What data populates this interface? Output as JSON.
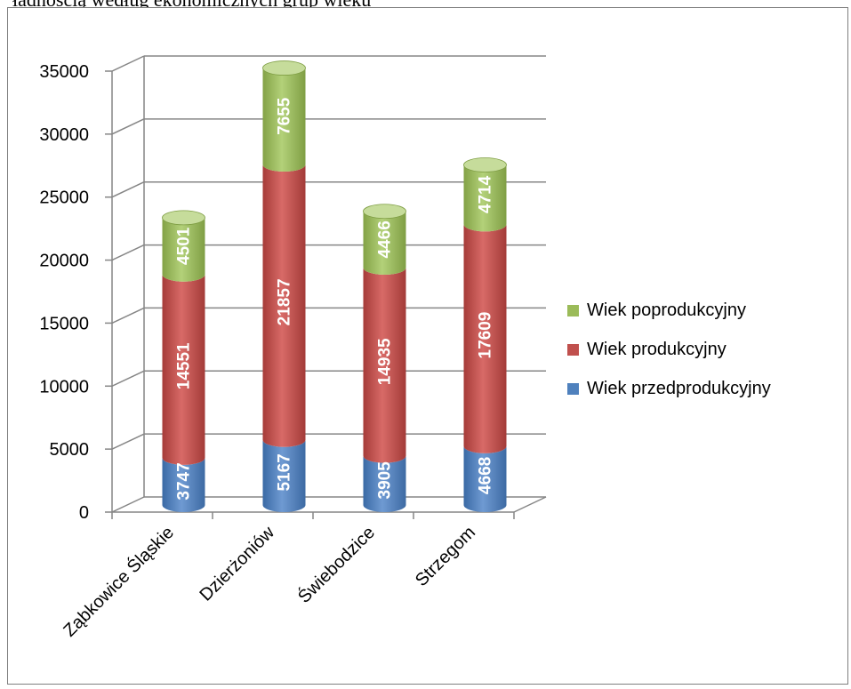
{
  "caption": "ładnością według ekonomicznych grup wieku",
  "chart_data": {
    "type": "bar",
    "stacked": true,
    "style": "3d-cylinder",
    "categories": [
      "Ząbkowice Śląskie",
      "Dzierżoniów",
      "Świebodzice",
      "Strzegom"
    ],
    "series": [
      {
        "name": "Wiek przedprodukcyjny",
        "values": [
          3747,
          5167,
          3905,
          4668
        ],
        "color": "#4f81bd"
      },
      {
        "name": "Wiek produkcyjny",
        "values": [
          14551,
          21857,
          14935,
          17609
        ],
        "color": "#c0504d"
      },
      {
        "name": "Wiek poprodukcyjny",
        "values": [
          4501,
          7655,
          4466,
          4714
        ],
        "color": "#9bbb59"
      }
    ],
    "ylim": [
      0,
      35000
    ],
    "yticks": [
      "0",
      "5000",
      "10000",
      "15000",
      "20000",
      "25000",
      "30000",
      "35000"
    ],
    "grid": true,
    "legend": "right",
    "legend_order": [
      "Wiek poprodukcyjny",
      "Wiek produkcyjny",
      "Wiek przedprodukcyjny"
    ]
  }
}
